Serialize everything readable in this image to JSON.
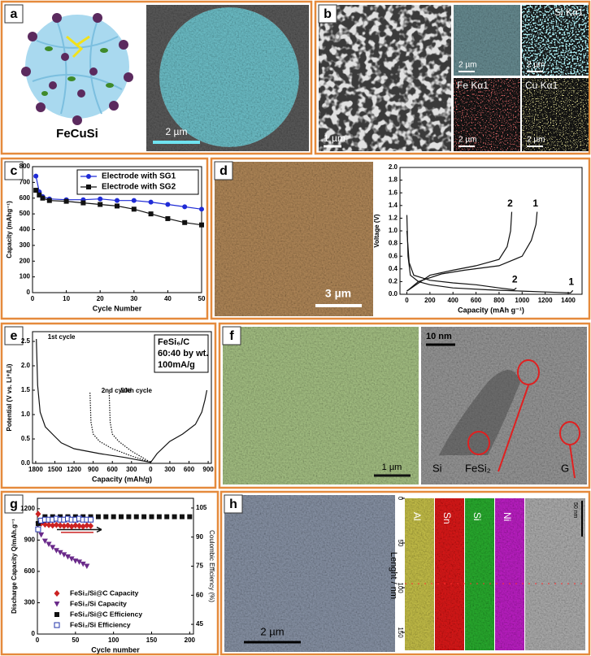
{
  "figure": {
    "panel_labels": [
      "a",
      "b",
      "c",
      "d",
      "e",
      "f",
      "g",
      "h"
    ],
    "a": {
      "caption": "FeCuSi",
      "scale_bar": "2 µm"
    },
    "b": {
      "scale_bar": "1 µm",
      "maps": [
        {
          "scale_bar": "2 µm"
        },
        {
          "label": "Si Kα1",
          "scale_bar": "2 µm"
        },
        {
          "label": "Fe Kα1",
          "scale_bar": "2 µm"
        },
        {
          "label": "Cu Kα1",
          "scale_bar": "2 µm"
        }
      ]
    },
    "d": {
      "scale_bar": "3 µm"
    },
    "f": {
      "sem_scale_bar": "1 µm",
      "tem_scale_bar": "10 nm",
      "phases": [
        "Si",
        "FeSi₂",
        "G"
      ]
    },
    "h": {
      "sem_scale_bar": "2 µm",
      "elements": [
        "Al",
        "Sn",
        "Si",
        "Ni"
      ],
      "line_scale_bar": "50 nm",
      "axis_label": "Lenght / nm",
      "axis_ticks": [
        0,
        50,
        100,
        150
      ],
      "axis_lim": [
        0,
        170
      ]
    }
  },
  "chart_data": [
    {
      "type": "line",
      "xlabel": "Cycle Number",
      "ylabel": "Capacity (mAhg⁻¹)",
      "x": [
        1,
        2,
        3,
        5,
        10,
        15,
        20,
        25,
        30,
        35,
        40,
        45,
        50
      ],
      "xlim": [
        0,
        50
      ],
      "xticks": [
        0,
        10,
        20,
        30,
        40,
        50
      ],
      "ylim": [
        0,
        800
      ],
      "yticks": [
        0,
        100,
        200,
        300,
        400,
        500,
        600,
        700,
        800
      ],
      "legend": "upper right",
      "series": [
        {
          "name": "Electrode with SG1",
          "color": "#1f2bd6",
          "marker": "circle",
          "values": [
            740,
            640,
            610,
            595,
            590,
            590,
            595,
            585,
            585,
            575,
            560,
            545,
            530
          ]
        },
        {
          "name": "Electrode with SG2",
          "color": "#111111",
          "marker": "square",
          "values": [
            650,
            620,
            600,
            585,
            580,
            570,
            560,
            550,
            530,
            500,
            470,
            445,
            430
          ]
        }
      ]
    },
    {
      "type": "line",
      "xlabel": "Capacity (mAh g⁻¹)",
      "ylabel": "Voltage (V)",
      "xlim": [
        -60,
        1520
      ],
      "xticks": [
        0,
        200,
        400,
        600,
        800,
        1000,
        1200,
        1400
      ],
      "ylim": [
        0,
        2.0
      ],
      "yticks": [
        {
          "value": 0,
          "label": "0.0"
        },
        0.2,
        0.4,
        0.6,
        0.8,
        {
          "value": 1,
          "label": "1.0"
        },
        1.2,
        1.4,
        1.6,
        1.8,
        {
          "value": 2,
          "label": "2.0"
        }
      ],
      "series": [
        {
          "name": "1",
          "color": "#111111",
          "x": [
            0,
            10,
            30,
            100,
            200,
            400,
            700,
            1000,
            1300,
            1420,
            1440
          ],
          "values": [
            1.25,
            0.6,
            0.3,
            0.2,
            0.15,
            0.1,
            0.07,
            0.05,
            0.03,
            0.02,
            0.06
          ]
        },
        {
          "name": "1",
          "color": "#111111",
          "x": [
            0,
            100,
            300,
            500,
            800,
            1000,
            1080,
            1120,
            1130
          ],
          "values": [
            0.05,
            0.2,
            0.32,
            0.38,
            0.45,
            0.6,
            0.85,
            1.1,
            1.3
          ]
        },
        {
          "name": "2",
          "color": "#111111",
          "x": [
            0,
            20,
            60,
            200,
            400,
            600,
            800,
            930,
            950
          ],
          "values": [
            1.0,
            0.5,
            0.3,
            0.22,
            0.18,
            0.15,
            0.1,
            0.07,
            0.1
          ]
        },
        {
          "name": "2",
          "color": "#111111",
          "x": [
            0,
            200,
            400,
            600,
            800,
            870,
            900,
            910
          ],
          "values": [
            0.05,
            0.3,
            0.38,
            0.45,
            0.55,
            0.75,
            1.0,
            1.3
          ]
        }
      ]
    },
    {
      "type": "line",
      "xlabel": "Capacity (mAh/g)",
      "ylabel": "Potential (V vs. Li⁺/Li)",
      "xlim": [
        -1850,
        950
      ],
      "xticks": [
        {
          "value": -1800,
          "label": "1800"
        },
        {
          "value": -1500,
          "label": "1500"
        },
        {
          "value": -1200,
          "label": "1200"
        },
        {
          "value": -900,
          "label": "900"
        },
        {
          "value": -600,
          "label": "600"
        },
        {
          "value": -300,
          "label": "300"
        },
        0,
        {
          "value": 300,
          "label": "300"
        },
        {
          "value": 600,
          "label": "600"
        },
        {
          "value": 900,
          "label": "900"
        }
      ],
      "ylim": [
        0,
        2.7
      ],
      "yticks": [
        {
          "value": 0,
          "label": "0.0"
        },
        0.5,
        {
          "value": 1,
          "label": "1.0"
        },
        1.5,
        {
          "value": 2,
          "label": "2.0"
        },
        2.5
      ],
      "inset": [
        "FeSi₆/C",
        "60:40 by wt.",
        "100mA/g"
      ],
      "series": [
        {
          "name": "1st cycle",
          "color": "#111111",
          "x": [
            -1790,
            -1770,
            -1730,
            -1650,
            -1500,
            -1400,
            -1200,
            -800,
            -400,
            0
          ],
          "values": [
            2.55,
            1.6,
            1.05,
            0.75,
            0.55,
            0.42,
            0.3,
            0.2,
            0.12,
            0.02
          ]
        },
        {
          "name": "2nd cycle",
          "color": "#111111",
          "dash": true,
          "x": [
            -950,
            -935,
            -900,
            -800,
            -600,
            -300,
            0
          ],
          "values": [
            1.45,
            0.85,
            0.6,
            0.45,
            0.3,
            0.15,
            0.02
          ]
        },
        {
          "name": "50th cycle",
          "color": "#111111",
          "dash": true,
          "x": [
            -650,
            -635,
            -600,
            -500,
            -300,
            0
          ],
          "values": [
            1.45,
            0.85,
            0.6,
            0.45,
            0.25,
            0.02
          ]
        },
        {
          "color": "#111111",
          "x": [
            0,
            100,
            300,
            500,
            700,
            800,
            850,
            880
          ],
          "values": [
            0.02,
            0.2,
            0.45,
            0.6,
            0.8,
            1.05,
            1.3,
            1.5
          ]
        }
      ]
    },
    {
      "type": "scatter",
      "xlabel": "Cycle number",
      "ylabel": "Discharge Capacity Q/mAh.g⁻¹",
      "y2label": "Coulombic Efficiency (%)",
      "xlim": [
        0,
        205
      ],
      "xticks": [
        0,
        50,
        100,
        150,
        200
      ],
      "ylim": [
        0,
        1300
      ],
      "yticks": [
        0,
        300,
        600,
        900,
        1200
      ],
      "y2lim": [
        40,
        110
      ],
      "y2ticks": [
        45,
        60,
        75,
        90,
        105
      ],
      "legend": "lower left",
      "series": [
        {
          "name": "FeSi₂/Si@C Capacity",
          "color": "#cc2222",
          "marker": "diamond",
          "x": [
            1,
            5,
            10,
            15,
            20,
            25,
            30,
            35,
            40,
            45,
            50,
            55,
            60,
            65,
            70
          ],
          "values": [
            1150,
            1060,
            1050,
            1045,
            1040,
            1045,
            1040,
            1035,
            1040,
            1030,
            1040,
            1035,
            1030,
            1040,
            1035
          ]
        },
        {
          "name": "FeSi₂/Si Capacity",
          "color": "#6a2a8a",
          "marker": "triangle",
          "x": [
            1,
            5,
            10,
            15,
            20,
            25,
            30,
            35,
            40,
            45,
            50,
            55,
            60,
            65
          ],
          "values": [
            1050,
            950,
            890,
            860,
            830,
            800,
            780,
            760,
            740,
            720,
            700,
            690,
            670,
            650
          ]
        },
        {
          "name": "FeSi₂/Si@C Efficiency",
          "color": "#111111",
          "marker": "square",
          "axis": "y2",
          "x": [
            1,
            10,
            20,
            30,
            40,
            50,
            60,
            70,
            80,
            90,
            100,
            110,
            120,
            130,
            140,
            150,
            160,
            170,
            180,
            190,
            200
          ],
          "values": [
            97,
            100.5,
            100.5,
            100.5,
            100.5,
            100.5,
            100.5,
            100.5,
            100.5,
            100.5,
            100.5,
            100.5,
            100.5,
            100.5,
            100.5,
            100.5,
            100.5,
            100.5,
            100.5,
            100.5,
            100.5
          ]
        },
        {
          "name": "FeSi₂/Si Efficiency",
          "color": "#2233aa",
          "marker": "open-square",
          "axis": "y2",
          "x": [
            1,
            5,
            10,
            15,
            20,
            25,
            30,
            35,
            40,
            45,
            50,
            55,
            60,
            65,
            70
          ],
          "values": [
            94,
            98.5,
            99,
            99,
            99,
            99.5,
            99,
            99,
            99.5,
            99,
            99,
            99.5,
            99,
            99,
            99
          ]
        }
      ]
    }
  ]
}
